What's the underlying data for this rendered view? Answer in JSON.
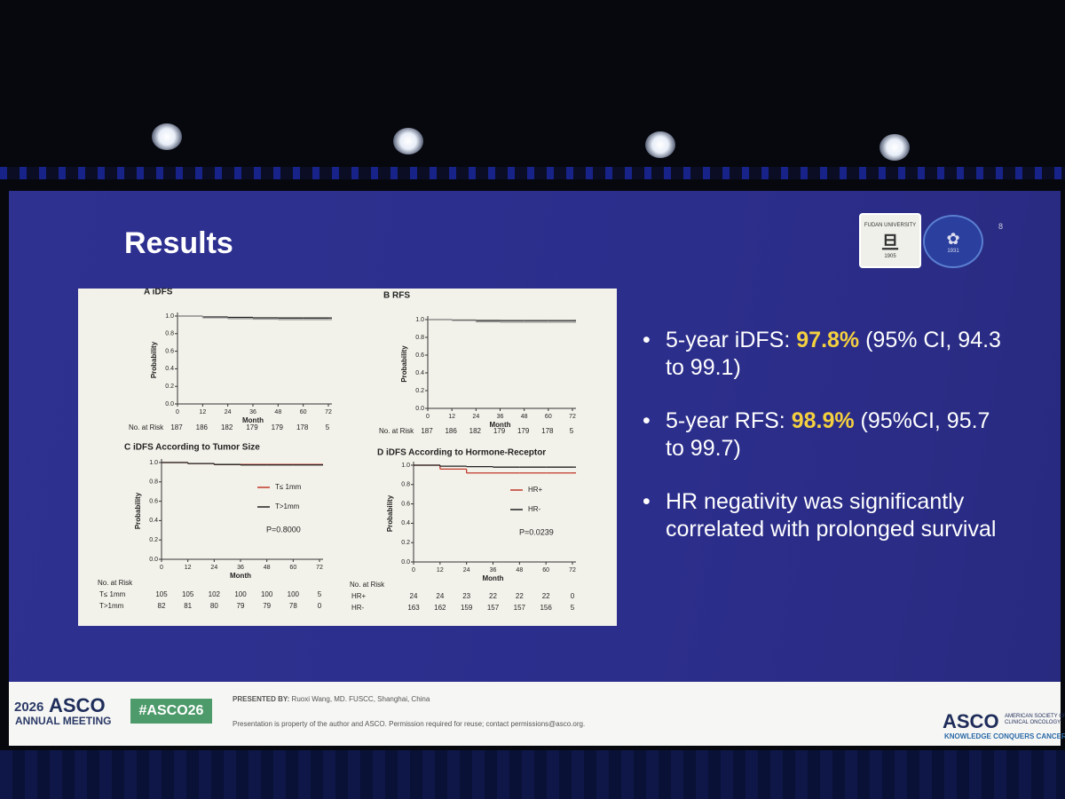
{
  "slide": {
    "title": "Results",
    "page_number": "8",
    "logos": {
      "university": "FUDAN UNIVERSITY",
      "university_year": "1905",
      "hospital_year": "1931"
    },
    "bullets": [
      {
        "prefix": "5-year iDFS: ",
        "highlight": "97.8%",
        "suffix": " (95% CI, 94.3 to 99.1)"
      },
      {
        "prefix": "5-year RFS: ",
        "highlight": "98.9%",
        "suffix": " (95%CI, 95.7 to 99.7)"
      },
      {
        "prefix": "HR negativity was significantly correlated with prolonged survival",
        "highlight": "",
        "suffix": ""
      }
    ],
    "footer": {
      "meeting_year": "2026",
      "meeting_name": "ASCO",
      "meeting_sub": "ANNUAL MEETING",
      "hashtag": "#ASCO26",
      "presented_by_label": "PRESENTED BY:",
      "presenter": "Ruoxi Wang, MD. FUSCC, Shanghai, China",
      "notice": "Presentation is property of the author and ASCO. Permission required for reuse; contact permissions@asco.org.",
      "org": "ASCO",
      "org_full": "AMERICAN SOCIETY OF CLINICAL ONCOLOGY",
      "tagline": "KNOWLEDGE CONQUERS CANCER"
    }
  },
  "chart_data": [
    {
      "type": "line",
      "title": "A iDFS",
      "xlabel": "Month",
      "ylabel": "Probability",
      "x": [
        0,
        12,
        24,
        36,
        48,
        60,
        72
      ],
      "series": [
        {
          "color": "#222222",
          "values": [
            1.0,
            0.99,
            0.985,
            0.98,
            0.978,
            0.978,
            0.978
          ]
        },
        {
          "color": "#999999",
          "values": [
            1.0,
            0.98,
            0.97,
            0.965,
            0.96,
            0.96,
            0.96
          ]
        }
      ],
      "xlim": [
        0,
        72
      ],
      "xticks": [
        0,
        12,
        24,
        36,
        48,
        60,
        72
      ],
      "ylim": [
        0,
        1
      ],
      "yticks": [
        {
          "value": 0,
          "label": "0.0"
        },
        0.2,
        0.4,
        0.6,
        0.8,
        {
          "value": 1,
          "label": "1.0"
        }
      ],
      "risk_table": {
        "label": "No. at Risk",
        "rows": [
          {
            "values": [
              187,
              186,
              182,
              179,
              179,
              178,
              5
            ]
          }
        ]
      }
    },
    {
      "type": "line",
      "title": "B RFS",
      "xlabel": "Month",
      "ylabel": "Probability",
      "x": [
        0,
        12,
        24,
        36,
        48,
        60,
        72
      ],
      "series": [
        {
          "color": "#222222",
          "values": [
            1.0,
            0.995,
            0.99,
            0.989,
            0.989,
            0.989,
            0.989
          ]
        },
        {
          "color": "#999999",
          "values": [
            1.0,
            0.99,
            0.975,
            0.97,
            0.97,
            0.97,
            0.97
          ]
        }
      ],
      "xlim": [
        0,
        72
      ],
      "xticks": [
        0,
        12,
        24,
        36,
        48,
        60,
        72
      ],
      "ylim": [
        0,
        1
      ],
      "yticks": [
        {
          "value": 0,
          "label": "0.0"
        },
        0.2,
        0.4,
        0.6,
        0.8,
        {
          "value": 1,
          "label": "1.0"
        }
      ],
      "risk_table": {
        "label": "No. at Risk",
        "rows": [
          {
            "values": [
              187,
              186,
              182,
              179,
              179,
              178,
              5
            ]
          }
        ]
      }
    },
    {
      "type": "line",
      "title": "C iDFS According to Tumor Size",
      "xlabel": "Month",
      "ylabel": "Probability",
      "x": [
        0,
        12,
        24,
        36,
        48,
        60,
        72
      ],
      "series": [
        {
          "name": "T≤ 1mm",
          "color": "#c0392b",
          "values": [
            1.0,
            0.99,
            0.98,
            0.98,
            0.98,
            0.98,
            0.98
          ]
        },
        {
          "name": "T>1mm",
          "color": "#222222",
          "values": [
            1.0,
            0.99,
            0.98,
            0.975,
            0.975,
            0.975,
            0.975
          ]
        }
      ],
      "xlim": [
        0,
        72
      ],
      "xticks": [
        0,
        12,
        24,
        36,
        48,
        60,
        72
      ],
      "ylim": [
        0,
        1
      ],
      "yticks": [
        {
          "value": 0,
          "label": "0.0"
        },
        0.2,
        0.4,
        0.6,
        0.8,
        {
          "value": 1,
          "label": "1.0"
        }
      ],
      "legend": "right",
      "annotation": "P=0.8000",
      "risk_table": {
        "label": "No. at Risk",
        "rows": [
          {
            "name": "T≤ 1mm",
            "values": [
              105,
              105,
              102,
              100,
              100,
              100,
              5
            ]
          },
          {
            "name": "T>1mm",
            "values": [
              82,
              81,
              80,
              79,
              79,
              78,
              0
            ]
          }
        ]
      }
    },
    {
      "type": "line",
      "title": "D iDFS According to Hormone-Receptor",
      "xlabel": "Month",
      "ylabel": "Probability",
      "x": [
        0,
        12,
        24,
        36,
        48,
        60,
        72
      ],
      "series": [
        {
          "name": "HR+",
          "color": "#c0392b",
          "values": [
            1.0,
            0.96,
            0.92,
            0.92,
            0.92,
            0.92,
            0.92
          ]
        },
        {
          "name": "HR-",
          "color": "#222222",
          "values": [
            1.0,
            0.99,
            0.985,
            0.98,
            0.98,
            0.98,
            0.98
          ]
        }
      ],
      "xlim": [
        0,
        72
      ],
      "xticks": [
        0,
        12,
        24,
        36,
        48,
        60,
        72
      ],
      "ylim": [
        0,
        1
      ],
      "yticks": [
        {
          "value": 0,
          "label": "0.0"
        },
        0.2,
        0.4,
        0.6,
        0.8,
        {
          "value": 1,
          "label": "1.0"
        }
      ],
      "legend": "right",
      "annotation": "P=0.0239",
      "risk_table": {
        "label": "No. at Risk",
        "rows": [
          {
            "name": "HR+",
            "values": [
              24,
              24,
              23,
              22,
              22,
              22,
              0
            ]
          },
          {
            "name": "HR-",
            "values": [
              163,
              162,
              159,
              157,
              157,
              156,
              5
            ]
          }
        ]
      }
    }
  ]
}
